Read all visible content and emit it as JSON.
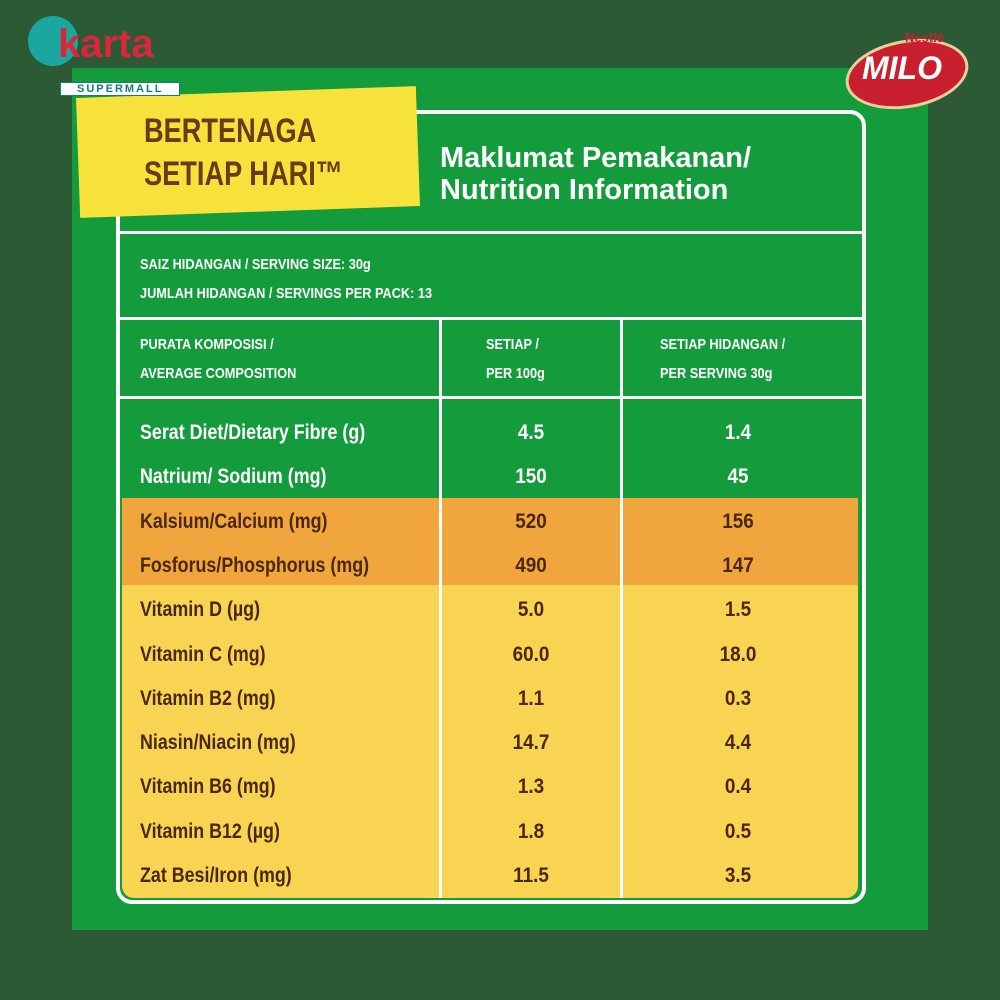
{
  "logos": {
    "store": {
      "name": "karta",
      "tagline": "SUPERMALL"
    },
    "brand": {
      "maker": "Nestlé",
      "name": "MILO"
    }
  },
  "banner": {
    "lines": [
      "BERTENAGA",
      "SETIAP HARI™"
    ]
  },
  "header": {
    "title_lines": [
      "Maklumat Pemakanan/",
      "Nutrition Information"
    ]
  },
  "serving": [
    "SAIZ HIDANGAN / SERVING SIZE: 30g",
    "JUMLAH HIDANGAN / SERVINGS PER PACK: 13"
  ],
  "table": {
    "columns": [
      [
        "PURATA KOMPOSISI /",
        "AVERAGE COMPOSITION"
      ],
      [
        "SETIAP /",
        "PER 100g"
      ],
      [
        "SETIAP HIDANGAN /",
        "PER SERVING 30g"
      ]
    ],
    "groups": [
      {
        "rows": [
          [
            "Serat Diet/Dietary Fibre (g)",
            "4.5",
            "1.4"
          ],
          [
            "Natrium/ Sodium (mg)",
            "150",
            "45"
          ]
        ]
      },
      {
        "rows": [
          [
            "Kalsium/Calcium (mg)",
            "520",
            "156"
          ],
          [
            "Fosforus/Phosphorus (mg)",
            "490",
            "147"
          ]
        ]
      },
      {
        "rows": [
          [
            "Vitamin D (µg)",
            "5.0",
            "1.5"
          ],
          [
            "Vitamin C (mg)",
            "60.0",
            "18.0"
          ],
          [
            "Vitamin B2 (mg)",
            "1.1",
            "0.3"
          ],
          [
            "Niasin/Niacin (mg)",
            "14.7",
            "4.4"
          ],
          [
            "Vitamin B6 (mg)",
            "1.3",
            "0.4"
          ],
          [
            "Vitamin B12 (µg)",
            "1.8",
            "0.5"
          ],
          [
            "Zat Besi/Iron (mg)",
            "11.5",
            "3.5"
          ]
        ]
      }
    ]
  }
}
